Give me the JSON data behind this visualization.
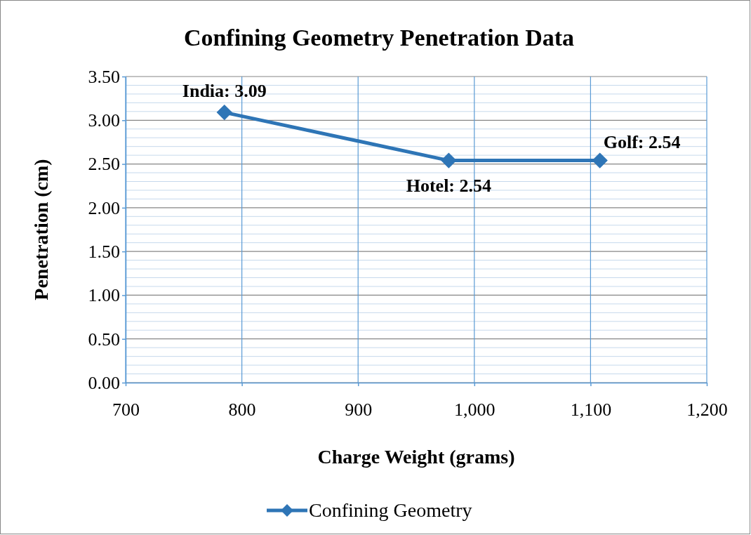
{
  "chart_data": {
    "type": "line",
    "title": "Confining Geometry Penetration Data",
    "xlabel": "Charge Weight (grams)",
    "ylabel": "Penetration (cm)",
    "x": [
      785,
      978,
      1108
    ],
    "series": [
      {
        "name": "Confining Geometry",
        "color": "#2e75b6",
        "values": [
          3.09,
          2.54,
          2.54
        ],
        "value_labels": [
          "India: 3.09",
          "Hotel: 2.54",
          "Golf: 2.54"
        ]
      }
    ],
    "xlim": [
      700,
      1200
    ],
    "xticks": [
      700,
      800,
      900,
      {
        "value": 1000,
        "label": "1,000"
      },
      {
        "value": 1100,
        "label": "1,100"
      },
      {
        "value": 1200,
        "label": "1,200"
      }
    ],
    "ylim": [
      0,
      3.5
    ],
    "yticks": [
      {
        "value": 0,
        "label": "0.00"
      },
      {
        "value": 0.5,
        "label": "0.50"
      },
      {
        "value": 1,
        "label": "1.00"
      },
      {
        "value": 1.5,
        "label": "1.50"
      },
      {
        "value": 2,
        "label": "2.00"
      },
      {
        "value": 2.5,
        "label": "2.50"
      },
      {
        "value": 3,
        "label": "3.00"
      },
      {
        "value": 3.5,
        "label": "3.50"
      }
    ],
    "grid": true,
    "legend": "bottom",
    "marker": "diamond",
    "line_style": "solid"
  }
}
